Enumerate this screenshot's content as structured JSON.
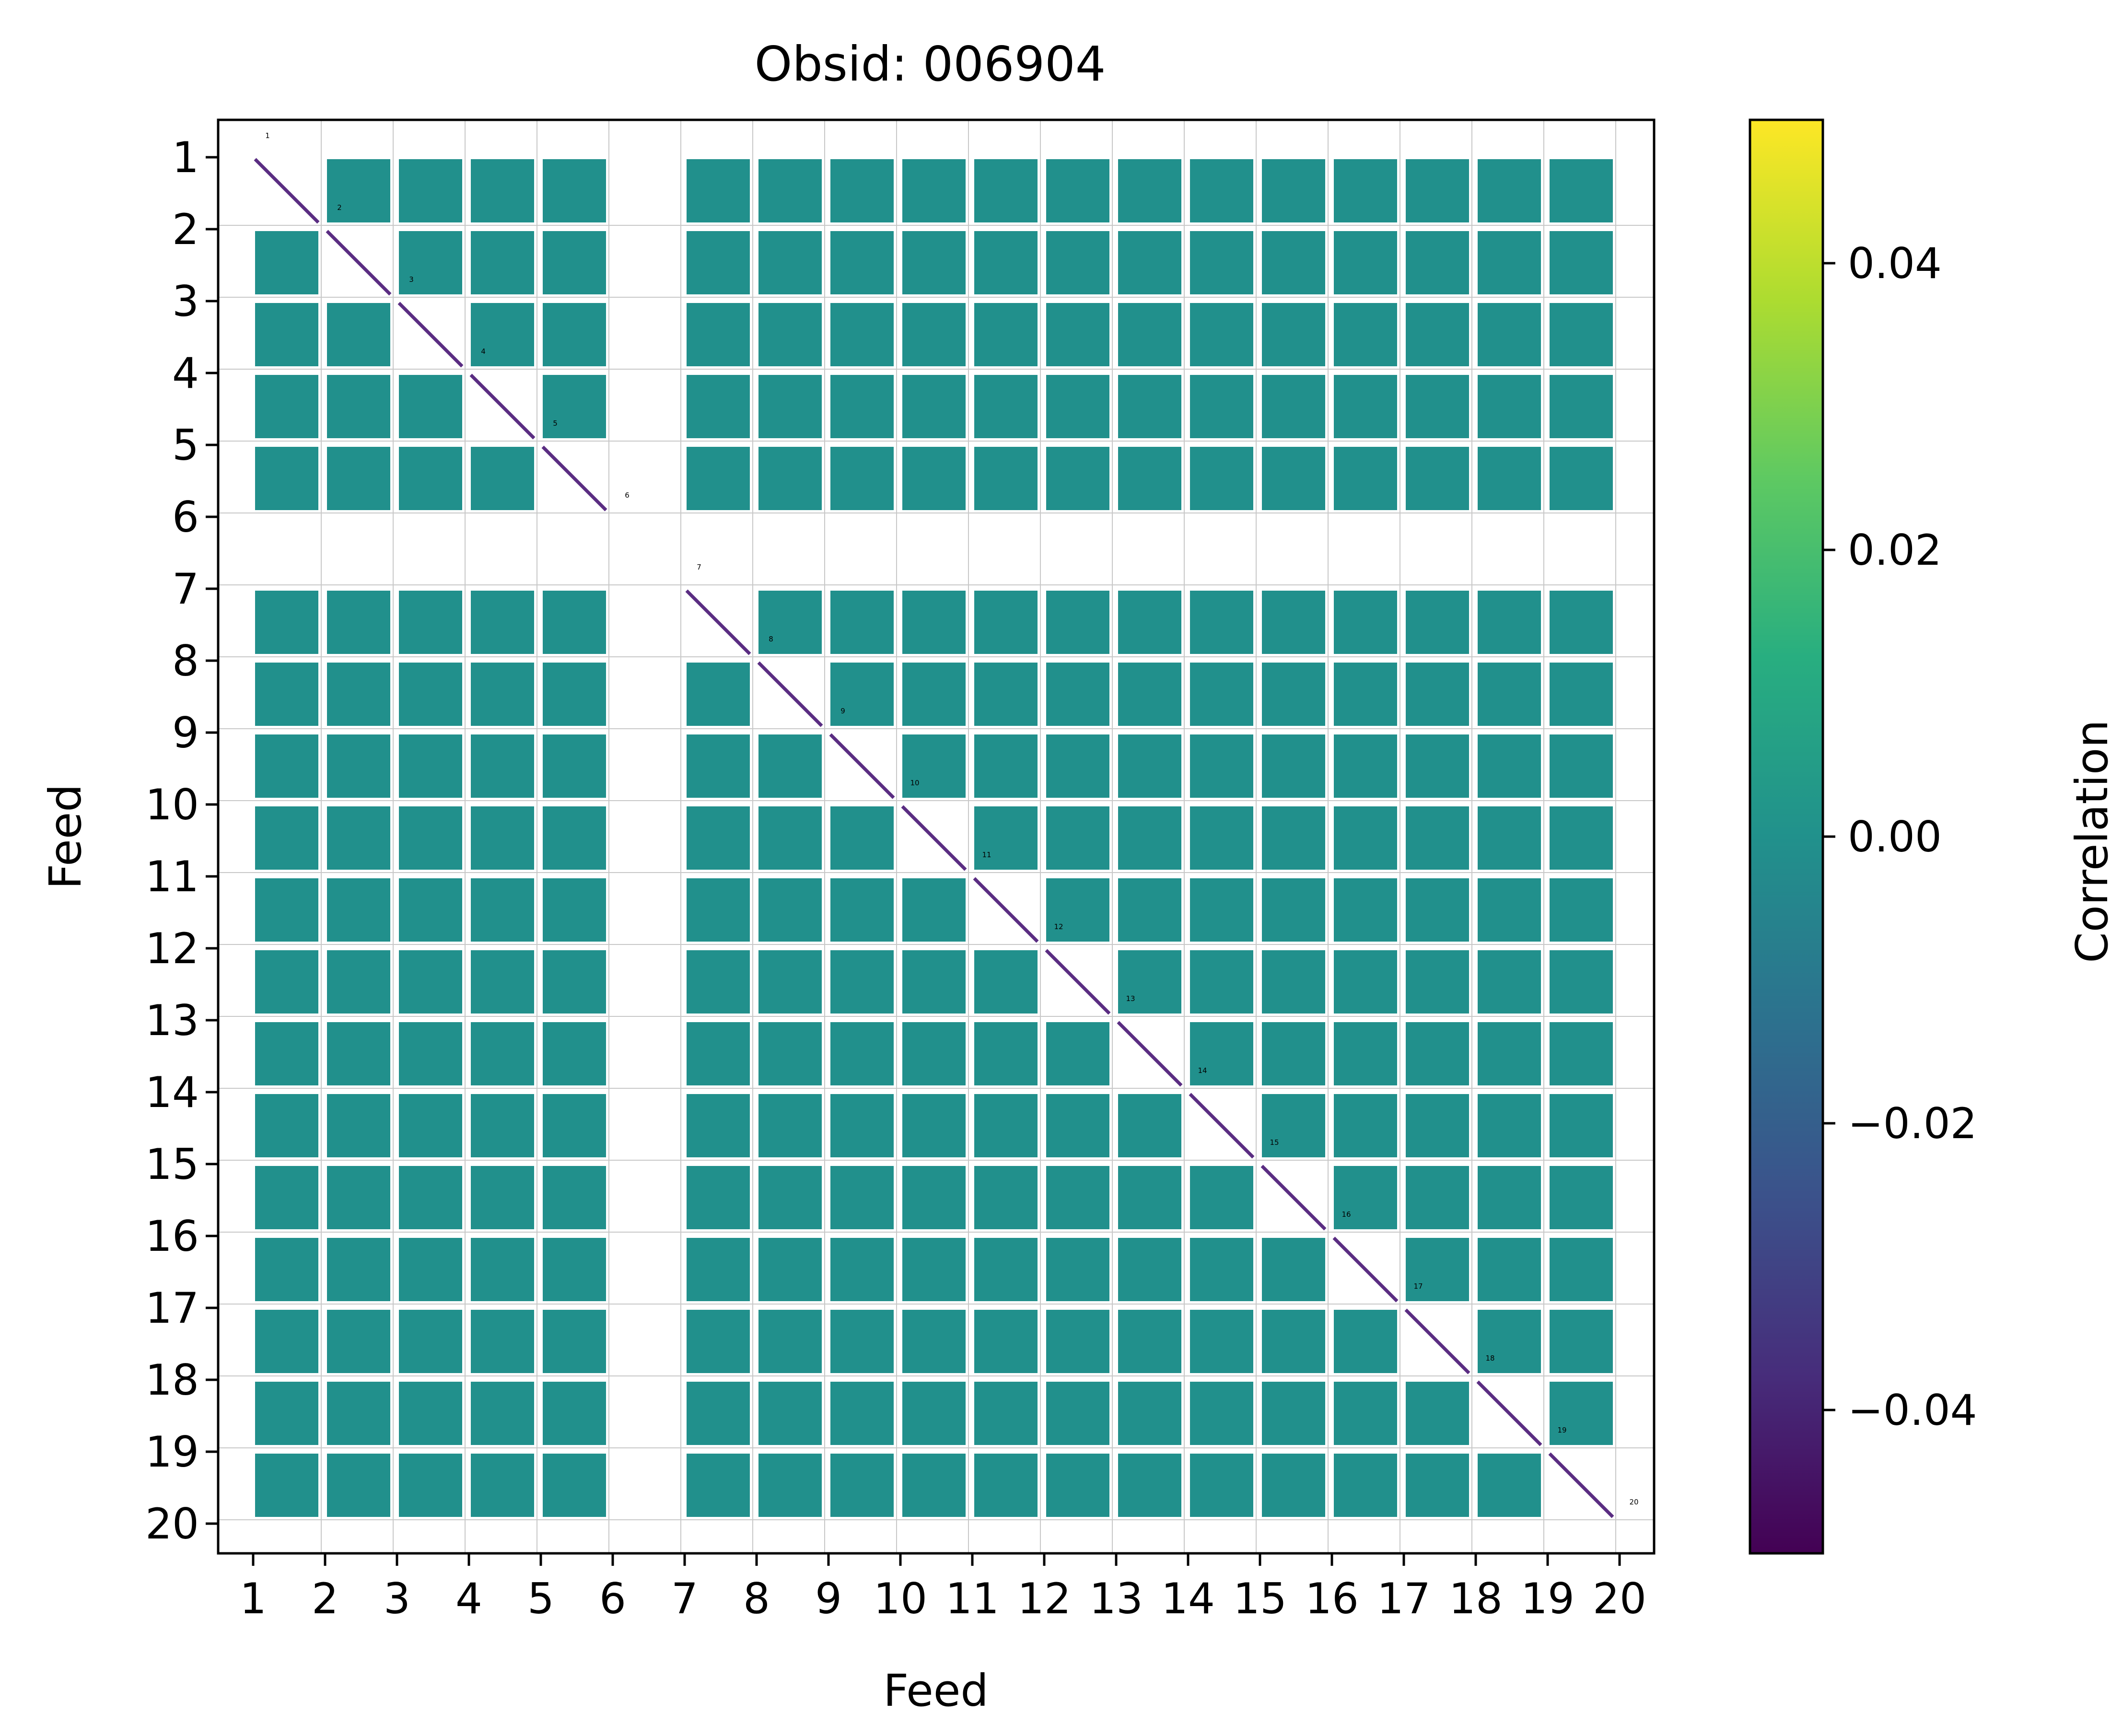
{
  "chart_data": {
    "type": "heatmap",
    "title": "Obsid: 006904",
    "xlabel": "Feed",
    "ylabel": "Feed",
    "x_tick_labels": [
      "1",
      "2",
      "3",
      "4",
      "5",
      "6",
      "7",
      "8",
      "9",
      "10",
      "11",
      "12",
      "13",
      "14",
      "15",
      "16",
      "17",
      "18",
      "19",
      "20"
    ],
    "y_tick_labels": [
      "1",
      "2",
      "3",
      "4",
      "5",
      "6",
      "7",
      "8",
      "9",
      "10",
      "11",
      "12",
      "13",
      "14",
      "15",
      "16",
      "17",
      "18",
      "19",
      "20"
    ],
    "feed_annotations": [
      "1",
      "2",
      "3",
      "4",
      "5",
      "6",
      "7",
      "8",
      "9",
      "10",
      "11",
      "12",
      "13",
      "14",
      "15",
      "16",
      "17",
      "18",
      "19",
      "20"
    ],
    "colorbar": {
      "label": "Correlation",
      "range": [
        -0.05,
        0.05
      ],
      "tick_values": [
        -0.04,
        -0.02,
        0.0,
        0.02,
        0.04
      ],
      "tick_labels": [
        "−0.04",
        "−0.02",
        "0.00",
        "0.02",
        "0.04"
      ],
      "colormap": "viridis"
    },
    "masked_feeds": [
      6,
      20
    ],
    "grid": true,
    "diagonal_color": "#5a2d82",
    "offdiag_color": "#21908c"
  }
}
